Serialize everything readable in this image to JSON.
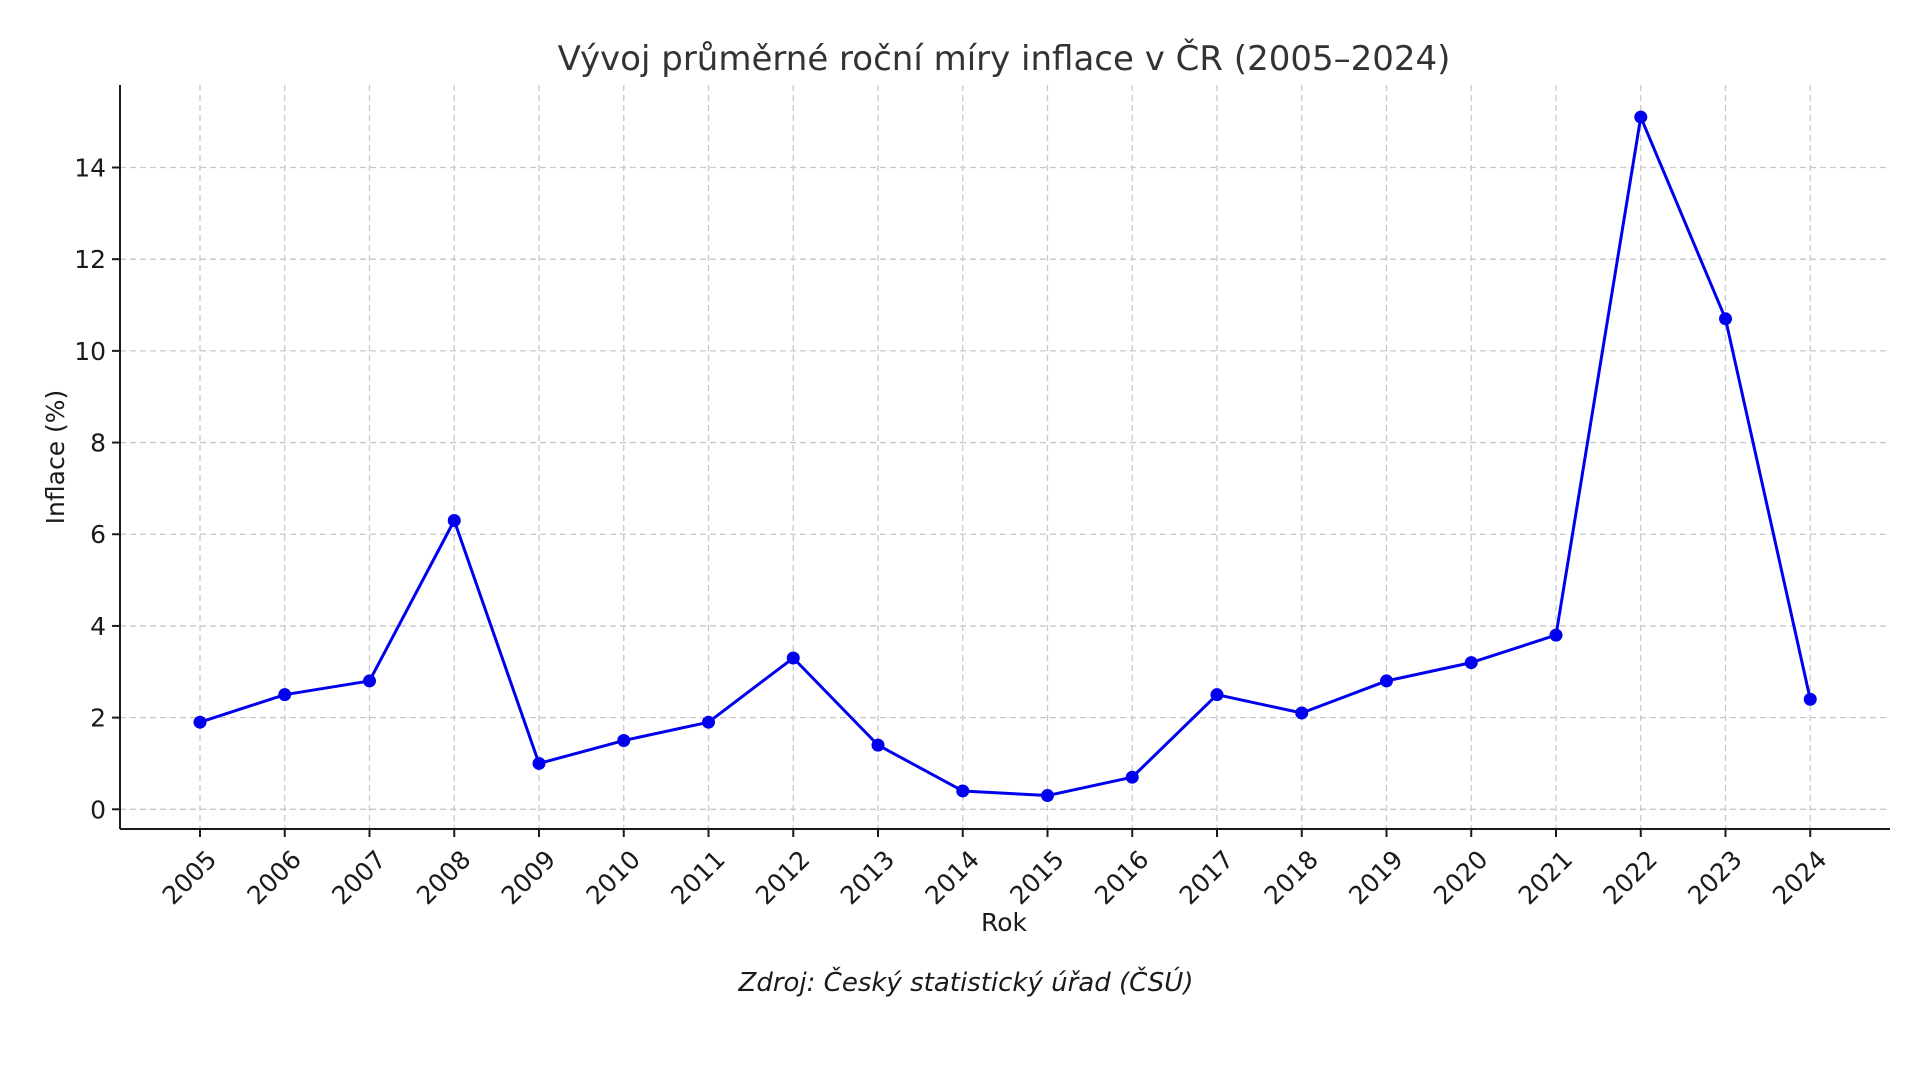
{
  "chart_data": {
    "type": "line",
    "title": "Vývoj průměrné roční míry inflace v ČR (2005–2024)",
    "xlabel": "Rok",
    "ylabel": "Inflace (%)",
    "source": "Zdroj: Český statistický úřad (ČSÚ)",
    "x": [
      "2005",
      "2006",
      "2007",
      "2008",
      "2009",
      "2010",
      "2011",
      "2012",
      "2013",
      "2014",
      "2015",
      "2016",
      "2017",
      "2018",
      "2019",
      "2020",
      "2021",
      "2022",
      "2023",
      "2024"
    ],
    "series": [
      {
        "values": [
          1.9,
          2.5,
          2.8,
          6.3,
          1.0,
          1.5,
          1.9,
          3.3,
          1.4,
          0.4,
          0.3,
          0.7,
          2.5,
          2.1,
          2.8,
          3.2,
          3.8,
          15.1,
          10.7,
          2.4
        ],
        "color": "#0000ee",
        "marker": "circle"
      }
    ],
    "yticks": [
      "0",
      "2",
      "4",
      "6",
      "8",
      "10",
      "12",
      "14"
    ],
    "ylim": [
      -0.43,
      15.8
    ],
    "grid": true,
    "x_tick_rotation_deg": 45
  }
}
